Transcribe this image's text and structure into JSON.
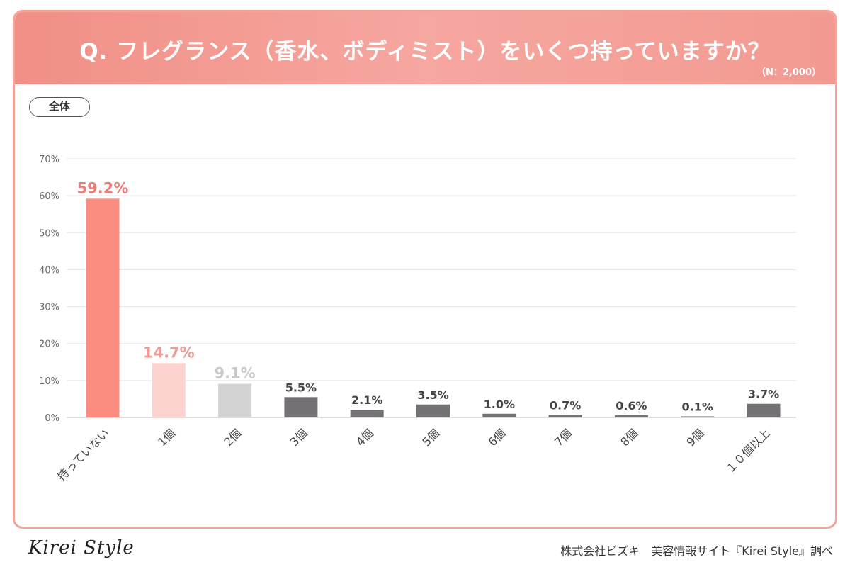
{
  "header": {
    "question": "Q. フレグランス（香水、ボディミスト）をいくつ持っていますか？",
    "sample_size": "（N：2,000）"
  },
  "segment_label": "全体",
  "footer": {
    "logo_text": "Kirei Style",
    "credit": "株式会社ビズキ　美容情報サイト『Kirei Style』調べ"
  },
  "colors": {
    "accent": "#f08f86",
    "bar_first": "#fa8c80",
    "bar_second": "#fdd3d0",
    "bar_third": "#d3d3d3",
    "bar_rest": "#737173",
    "label_first": "#ea7f77",
    "label_second": "#f19b94",
    "label_third": "#c9c9c9",
    "label_rest": "#444444"
  },
  "chart_data": {
    "type": "bar",
    "title": "Q. フレグランス（香水、ボディミスト）をいくつ持っていますか？",
    "categories": [
      "持っていない",
      "1個",
      "2個",
      "3個",
      "4個",
      "5個",
      "6個",
      "7個",
      "8個",
      "9個",
      "１０個以上"
    ],
    "values": [
      59.2,
      14.7,
      9.1,
      5.5,
      2.1,
      3.5,
      1.0,
      0.7,
      0.6,
      0.1,
      3.7
    ],
    "value_labels": [
      "59.2%",
      "14.7%",
      "9.1%",
      "5.5%",
      "2.1%",
      "3.5%",
      "1.0%",
      "0.7%",
      "0.6%",
      "0.1%",
      "3.7%"
    ],
    "ylim": [
      0,
      70
    ],
    "yticks": [
      0,
      10,
      20,
      30,
      40,
      50,
      60,
      70
    ],
    "ytick_labels": [
      "0%",
      "10%",
      "20%",
      "30%",
      "40%",
      "50%",
      "60%",
      "70%"
    ],
    "xlabel": "",
    "ylabel": "",
    "grid": true
  }
}
